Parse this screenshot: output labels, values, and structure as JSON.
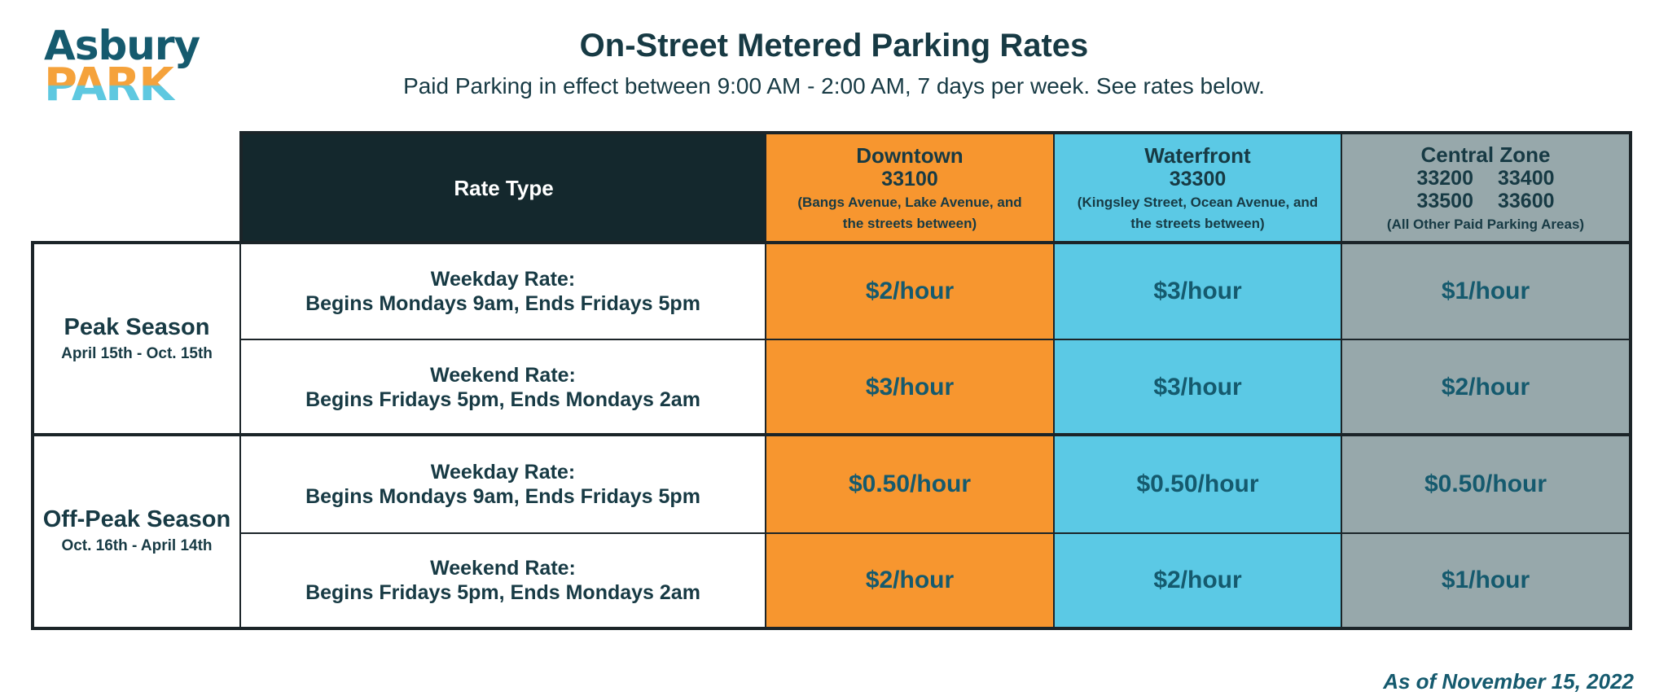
{
  "logo": {
    "line1": "Asbury",
    "line2": "PARK"
  },
  "title": "On-Street Metered Parking Rates",
  "subtitle": "Paid Parking in effect between 9:00 AM - 2:00 AM, 7 days per week. See rates below.",
  "table": {
    "rate_type_header": "Rate Type",
    "zones": [
      {
        "name": "Downtown",
        "codes": [
          "33100"
        ],
        "desc_line1": "(Bangs Avenue, Lake Avenue, and",
        "desc_line2": "the streets between)",
        "color": "#f7962f"
      },
      {
        "name": "Waterfront",
        "codes": [
          "33300"
        ],
        "desc_line1": "(Kingsley Street, Ocean Avenue, and",
        "desc_line2": "the streets between)",
        "color": "#5bc9e5"
      },
      {
        "name": "Central Zone",
        "codes": [
          "33200",
          "33400",
          "33500",
          "33600"
        ],
        "desc_line1": "(All Other Paid Parking Areas)",
        "desc_line2": "",
        "color": "#97a8ab"
      }
    ],
    "seasons": [
      {
        "name": "Peak Season",
        "dates": "April 15th - Oct. 15th",
        "rows": [
          {
            "label_line1": "Weekday Rate:",
            "label_line2": "Begins Mondays 9am, Ends Fridays 5pm",
            "rates": [
              "$2/hour",
              "$3/hour",
              "$1/hour"
            ]
          },
          {
            "label_line1": "Weekend Rate:",
            "label_line2": "Begins Fridays 5pm, Ends Mondays 2am",
            "rates": [
              "$3/hour",
              "$3/hour",
              "$2/hour"
            ]
          }
        ]
      },
      {
        "name": "Off-Peak Season",
        "dates": "Oct. 16th - April 14th",
        "rows": [
          {
            "label_line1": "Weekday Rate:",
            "label_line2": "Begins Mondays 9am, Ends Fridays 5pm",
            "rates": [
              "$0.50/hour",
              "$0.50/hour",
              "$0.50/hour"
            ]
          },
          {
            "label_line1": "Weekend Rate:",
            "label_line2": "Begins Fridays 5pm, Ends Mondays 2am",
            "rates": [
              "$2/hour",
              "$2/hour",
              "$1/hour"
            ]
          }
        ]
      }
    ]
  },
  "footer": "As of November 15, 2022"
}
